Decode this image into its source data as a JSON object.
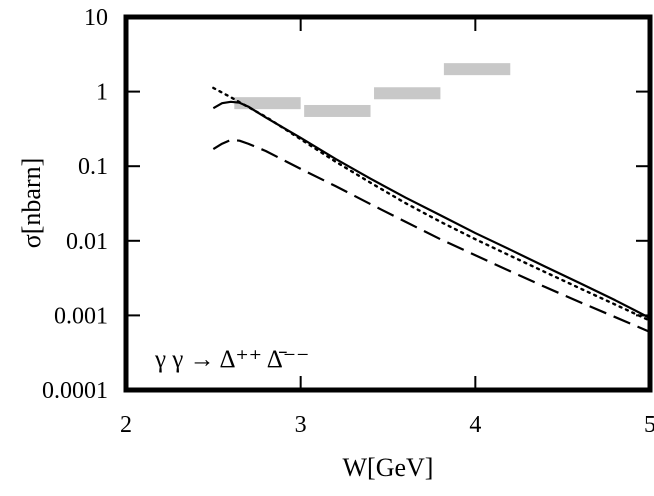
{
  "chart_data": {
    "type": "line",
    "title": "",
    "xlabel": "W[GeV]",
    "ylabel": "σ[nbarn]",
    "xlim": [
      2,
      5
    ],
    "ylim": [
      0.0001,
      10
    ],
    "yscale": "log",
    "grid": false,
    "x_ticks": [
      {
        "value": 2,
        "label": "2"
      },
      {
        "value": 3,
        "label": "3"
      },
      {
        "value": 4,
        "label": "4"
      },
      {
        "value": 5,
        "label": "5"
      }
    ],
    "y_ticks": [
      {
        "value": 0.0001,
        "label": "0.0001"
      },
      {
        "value": 0.001,
        "label": "0.001"
      },
      {
        "value": 0.01,
        "label": "0.01"
      },
      {
        "value": 0.1,
        "label": "0.1"
      },
      {
        "value": 1,
        "label": "1"
      },
      {
        "value": 10,
        "label": "10"
      }
    ],
    "annotation": "γ γ → Δ⁺⁺ Δ̄⁻⁻",
    "series": [
      {
        "style": "solid",
        "color": "#000000",
        "x": [
          2.5,
          2.55,
          2.6,
          2.65,
          2.7,
          2.8,
          3.0,
          3.2,
          3.4,
          3.6,
          3.8,
          4.0,
          4.2,
          4.4,
          4.6,
          4.8,
          5.0
        ],
        "y": [
          0.6,
          0.7,
          0.73,
          0.71,
          0.63,
          0.45,
          0.24,
          0.125,
          0.068,
          0.038,
          0.022,
          0.0127,
          0.0076,
          0.0045,
          0.0027,
          0.0016,
          0.00092
        ]
      },
      {
        "style": "dashed",
        "color": "#000000",
        "x": [
          2.5,
          2.55,
          2.6,
          2.65,
          2.7,
          2.8,
          3.0,
          3.2,
          3.4,
          3.6,
          3.8,
          4.0,
          4.2,
          4.4,
          4.6,
          4.8,
          5.0
        ],
        "y": [
          0.17,
          0.2,
          0.225,
          0.22,
          0.2,
          0.16,
          0.092,
          0.054,
          0.031,
          0.018,
          0.0105,
          0.0064,
          0.0039,
          0.0024,
          0.0015,
          0.00095,
          0.0006
        ]
      },
      {
        "style": "dotted",
        "color": "#000000",
        "x": [
          2.5,
          2.6,
          2.7,
          2.8,
          3.0,
          3.2,
          3.4,
          3.6,
          3.8,
          4.0,
          4.2,
          4.4,
          4.6,
          4.8,
          5.0
        ],
        "y": [
          1.12,
          0.84,
          0.62,
          0.46,
          0.23,
          0.115,
          0.06,
          0.032,
          0.018,
          0.0105,
          0.0063,
          0.0038,
          0.0023,
          0.0014,
          0.00085
        ]
      }
    ],
    "data_bands": [
      {
        "x0": 2.62,
        "x1": 3.0,
        "y": 0.7
      },
      {
        "x0": 3.02,
        "x1": 3.4,
        "y": 0.55
      },
      {
        "x0": 3.42,
        "x1": 3.8,
        "y": 0.95
      },
      {
        "x0": 3.82,
        "x1": 4.2,
        "y": 2.0
      }
    ],
    "band_color": "#c8c8c8"
  }
}
